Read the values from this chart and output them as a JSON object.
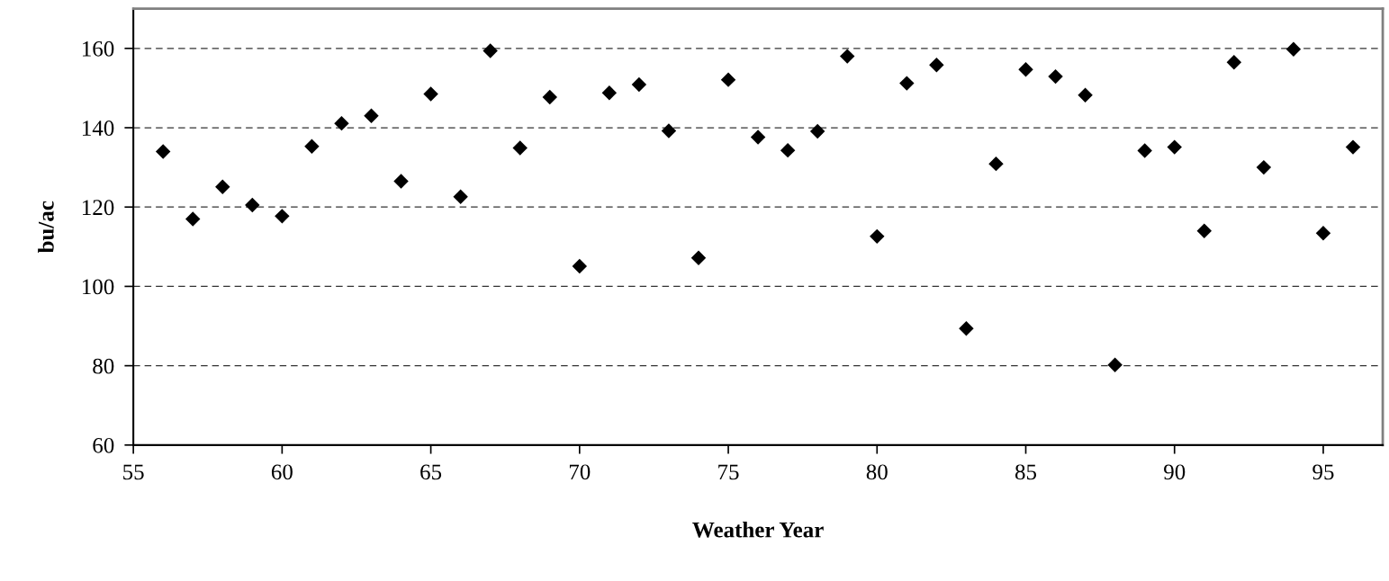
{
  "chart_data": {
    "type": "scatter",
    "xlabel": "Weather Year",
    "ylabel": "bu/ac",
    "x": [
      56,
      57,
      58,
      59,
      60,
      61,
      62,
      63,
      64,
      65,
      66,
      67,
      68,
      69,
      70,
      71,
      72,
      73,
      74,
      75,
      76,
      77,
      78,
      79,
      80,
      81,
      82,
      83,
      84,
      85,
      86,
      87,
      88,
      89,
      90,
      91,
      92,
      93,
      94,
      95,
      96
    ],
    "values": [
      134.0,
      117.0,
      125.1,
      120.5,
      117.7,
      135.3,
      141.1,
      143.0,
      126.5,
      148.5,
      122.6,
      159.4,
      134.9,
      147.7,
      105.1,
      148.8,
      150.9,
      139.2,
      107.2,
      152.1,
      137.6,
      134.3,
      139.1,
      158.0,
      112.6,
      151.2,
      155.8,
      89.4,
      130.9,
      154.7,
      152.9,
      148.2,
      80.2,
      134.2,
      135.1,
      114.0,
      156.5,
      130.0,
      159.8,
      113.4,
      135.1
    ],
    "color": "#000000",
    "marker": "diamond",
    "xlim": [
      55,
      97
    ],
    "xticks": [
      55,
      60,
      65,
      70,
      75,
      80,
      85,
      90,
      95
    ],
    "ylim": [
      60,
      170
    ],
    "yticks": [
      60,
      80,
      100,
      120,
      140,
      160
    ],
    "grid": "y",
    "legend": false
  }
}
